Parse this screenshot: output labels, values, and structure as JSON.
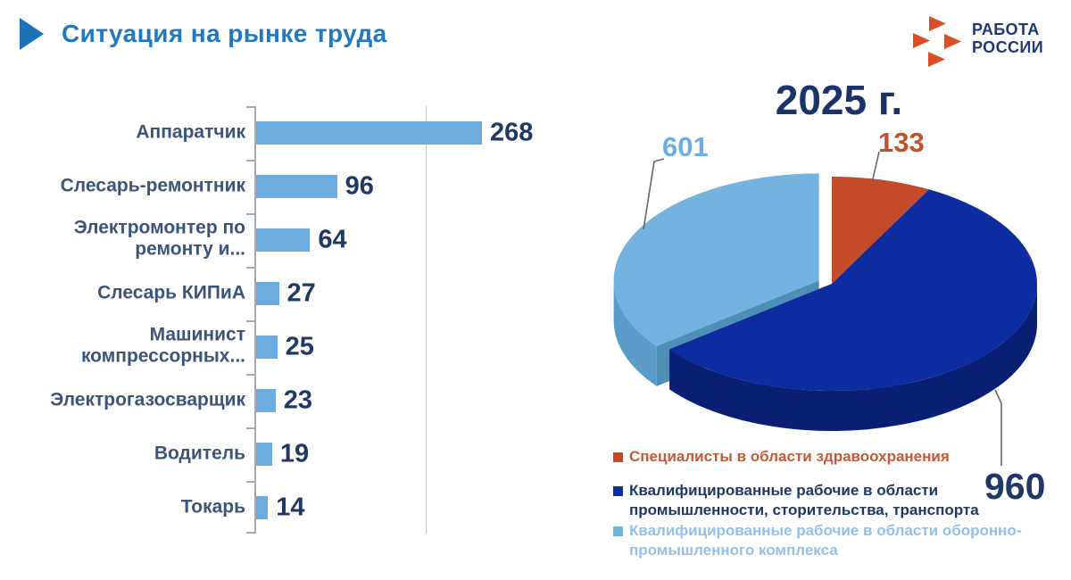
{
  "header": {
    "title": "Ситуация на рынке труда"
  },
  "logo": {
    "line1": "РАБОТА",
    "line2": "РОССИИ",
    "icon_color": "#D94F28",
    "text_color": "#1F3A6E"
  },
  "bar_chart": {
    "bar_color": "#6CACDF",
    "value_color": "#1F3864",
    "label_color": "#3A5578",
    "items": [
      {
        "label": "Аппаратчик",
        "value": 268
      },
      {
        "label": "Слесарь-ремонтник",
        "value": 96
      },
      {
        "label": "Электромонтер по\nремонту и...",
        "value": 64
      },
      {
        "label": "Слесарь КИПиА",
        "value": 27
      },
      {
        "label": "Машинист\nкомпрессорных...",
        "value": 25
      },
      {
        "label": "Электрогазосварщик",
        "value": 23
      },
      {
        "label": "Водитель",
        "value": 19
      },
      {
        "label": "Токарь",
        "value": 14
      }
    ]
  },
  "pie_chart": {
    "title": "2025 г.",
    "slices": [
      {
        "name": "healthcare",
        "label": "Специалисты в области здравоохранения",
        "value": 133,
        "display": "133",
        "color": "#C44B27",
        "side": "#9E3A1D",
        "text_color": "#C05A38",
        "callout_color": "#C0512C",
        "explode": 0
      },
      {
        "name": "industry",
        "label": "Квалифицированные рабочие в области\nпромышленности,  сторительства, транспорта",
        "value": 960,
        "display": "960",
        "color": "#0D2CA0",
        "side": "#081F73",
        "text_color": "#1F3864",
        "callout_color": "#1F3864",
        "explode": 0
      },
      {
        "name": "defense",
        "label": "Квалифицированные рабочие в области оборонно-\nпромышленного комплекса",
        "value": 601,
        "display": "601",
        "color": "#74B2E0",
        "side": "#5B9CC9",
        "cut": "#4E8FB5",
        "text_color": "#93C0E6",
        "callout_color": "#6FAEDC",
        "explode": 16
      }
    ]
  },
  "chart_data": [
    {
      "type": "bar",
      "orientation": "horizontal",
      "title": "",
      "categories": [
        "Аппаратчик",
        "Слесарь-ремонтник",
        "Электромонтер по ремонту и...",
        "Слесарь КИПиА",
        "Машинист компрессорных...",
        "Электрогазосварщик",
        "Водитель",
        "Токарь"
      ],
      "values": [
        268,
        96,
        64,
        27,
        25,
        23,
        19,
        14
      ],
      "xlabel": "",
      "ylabel": "",
      "xlim": [
        0,
        290
      ],
      "gridline_x": 200,
      "grid": "single vertical gridline",
      "bar_color": "#6CACDF",
      "legend_position": "none"
    },
    {
      "type": "pie",
      "style": "3d-exploded",
      "title": "2025 г.",
      "labels": [
        "Специалисты в области здравоохранения",
        "Квалифицированные рабочие в области промышленности,  сторительства, транспорта",
        "Квалифицированные рабочие в области оборонно-промышленного комплекса"
      ],
      "values": [
        133,
        960,
        601
      ],
      "colors": [
        "#C44B27",
        "#0D2CA0",
        "#74B2E0"
      ],
      "start_angle": "12 o'clock, clockwise",
      "exploded_slice": "Квалифицированные рабочие в области оборонно-промышленного комплекса",
      "legend_position": "bottom"
    }
  ]
}
